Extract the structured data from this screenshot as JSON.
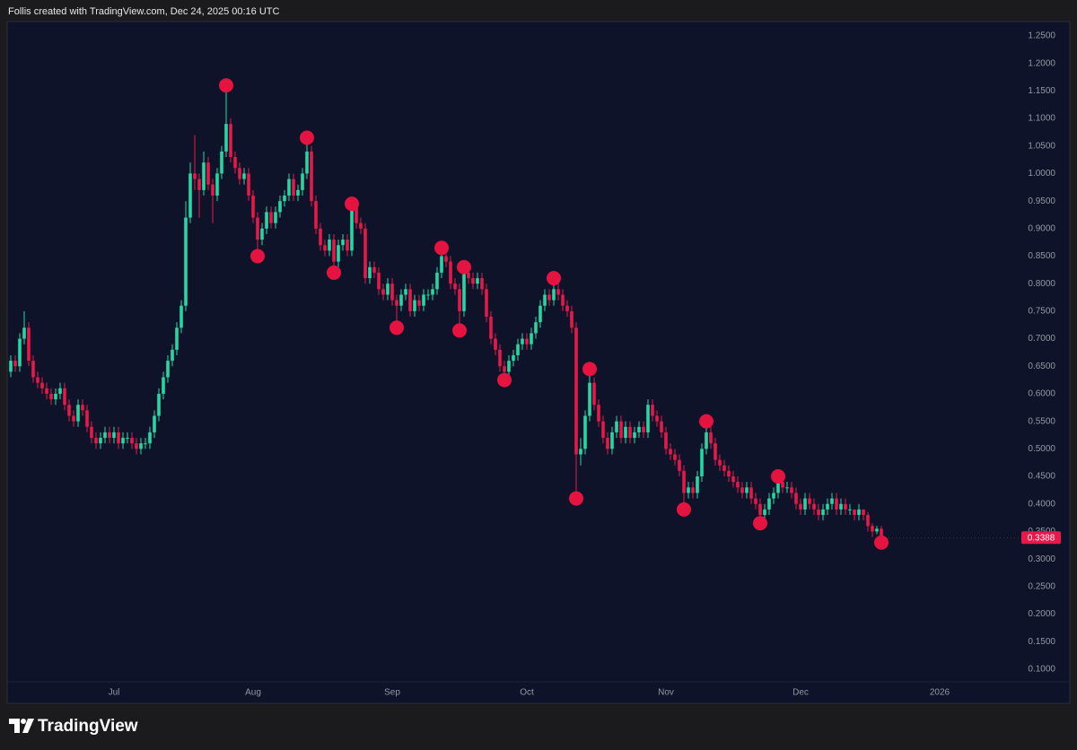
{
  "chart_data": {
    "type": "candlestick",
    "title": "Follis created with TradingView.com, Dec 24, 2025 00:16 UTC",
    "source": "TradingView",
    "up_color": "#26d7a4",
    "down_color": "#e8184a",
    "pivot_color": "#e5133f",
    "grid": false,
    "categories": [
      null,
      null,
      null,
      null,
      null,
      null,
      null,
      null,
      null,
      null,
      null,
      null,
      null,
      null,
      null,
      null,
      null,
      null,
      null,
      null,
      null,
      null,
      null,
      "Jul",
      null,
      null,
      null,
      null,
      null,
      null,
      null,
      null,
      null,
      null,
      null,
      null,
      null,
      null,
      null,
      null,
      null,
      null,
      null,
      null,
      null,
      null,
      null,
      null,
      null,
      null,
      null,
      null,
      null,
      null,
      "Aug",
      null,
      null,
      null,
      null,
      null,
      null,
      null,
      null,
      null,
      null,
      null,
      null,
      null,
      null,
      null,
      null,
      null,
      null,
      null,
      null,
      null,
      null,
      null,
      null,
      null,
      null,
      null,
      null,
      null,
      null,
      "Sep",
      null,
      null,
      null,
      null,
      null,
      null,
      null,
      null,
      null,
      null,
      null,
      null,
      null,
      null,
      null,
      null,
      null,
      null,
      null,
      null,
      null,
      null,
      null,
      null,
      null,
      null,
      null,
      null,
      null,
      "Oct",
      null,
      null,
      null,
      null,
      null,
      null,
      null,
      null,
      null,
      null,
      null,
      null,
      null,
      null,
      null,
      null,
      null,
      null,
      null,
      null,
      null,
      null,
      null,
      null,
      null,
      null,
      null,
      null,
      null,
      null,
      "Nov",
      null,
      null,
      null,
      null,
      null,
      null,
      null,
      null,
      null,
      null,
      null,
      null,
      null,
      null,
      null,
      null,
      null,
      null,
      null,
      null,
      null,
      null,
      null,
      null,
      null,
      null,
      null,
      null,
      null,
      "Dec",
      null,
      null,
      null,
      null,
      null,
      null,
      null,
      null,
      null,
      null,
      null,
      null,
      null,
      null,
      null,
      null,
      null,
      null,
      null,
      null,
      null,
      null,
      null,
      null,
      null,
      null,
      null,
      null,
      null,
      null,
      "2026"
    ],
    "open": [
      0.64,
      0.66,
      0.65,
      0.7,
      0.72,
      0.66,
      0.63,
      0.62,
      0.61,
      0.6,
      0.59,
      0.6,
      0.61,
      0.58,
      0.56,
      0.55,
      0.58,
      0.57,
      0.54,
      0.52,
      0.51,
      0.52,
      0.53,
      0.52,
      0.53,
      0.51,
      0.52,
      0.52,
      0.51,
      0.5,
      0.51,
      0.51,
      0.53,
      0.56,
      0.6,
      0.63,
      0.66,
      0.68,
      0.72,
      0.76,
      0.92,
      1.0,
      0.99,
      0.97,
      1.02,
      0.98,
      0.96,
      1.0,
      1.04,
      1.09,
      1.03,
      1.01,
      0.99,
      1.0,
      0.96,
      0.92,
      0.88,
      0.9,
      0.93,
      0.91,
      0.93,
      0.95,
      0.96,
      0.99,
      0.96,
      0.97,
      1.0,
      1.04,
      0.95,
      0.9,
      0.87,
      0.86,
      0.88,
      0.84,
      0.87,
      0.88,
      0.86,
      0.94,
      0.91,
      0.9,
      0.81,
      0.83,
      0.82,
      0.79,
      0.78,
      0.8,
      0.77,
      0.76,
      0.78,
      0.79,
      0.75,
      0.77,
      0.76,
      0.78,
      0.78,
      0.79,
      0.82,
      0.85,
      0.84,
      0.8,
      0.79,
      0.75,
      0.82,
      0.81,
      0.8,
      0.81,
      0.79,
      0.74,
      0.7,
      0.68,
      0.65,
      0.64,
      0.66,
      0.67,
      0.69,
      0.7,
      0.69,
      0.71,
      0.73,
      0.76,
      0.78,
      0.77,
      0.79,
      0.78,
      0.76,
      0.75,
      0.72,
      0.49,
      0.5,
      0.56,
      0.62,
      0.58,
      0.55,
      0.52,
      0.5,
      0.53,
      0.55,
      0.52,
      0.54,
      0.52,
      0.53,
      0.54,
      0.53,
      0.58,
      0.56,
      0.55,
      0.53,
      0.5,
      0.49,
      0.48,
      0.46,
      0.42,
      0.43,
      0.42,
      0.45,
      0.5,
      0.53,
      0.51,
      0.48,
      0.47,
      0.46,
      0.45,
      0.44,
      0.43,
      0.42,
      0.43,
      0.41,
      0.4,
      0.38,
      0.39,
      0.41,
      0.42,
      0.44,
      0.43,
      0.43,
      0.42,
      0.4,
      0.39,
      0.41,
      0.4,
      0.39,
      0.38,
      0.39,
      0.4,
      0.41,
      0.39,
      0.4,
      0.39,
      0.39,
      0.38,
      0.39,
      0.38,
      0.36,
      0.35,
      0.355,
      null,
      null,
      null,
      null,
      null,
      null,
      null,
      null,
      null,
      null,
      null,
      null,
      null
    ],
    "high": [
      0.67,
      0.67,
      0.71,
      0.75,
      0.73,
      0.67,
      0.64,
      0.63,
      0.62,
      0.61,
      0.61,
      0.62,
      0.62,
      0.59,
      0.57,
      0.59,
      0.59,
      0.58,
      0.55,
      0.53,
      0.53,
      0.54,
      0.54,
      0.54,
      0.54,
      0.53,
      0.53,
      0.53,
      0.52,
      0.52,
      0.52,
      0.54,
      0.57,
      0.61,
      0.64,
      0.67,
      0.69,
      0.73,
      0.77,
      0.95,
      1.02,
      1.07,
      1.0,
      1.04,
      1.03,
      0.99,
      1.01,
      1.05,
      1.15,
      1.1,
      1.04,
      1.02,
      1.01,
      1.01,
      0.97,
      0.93,
      0.91,
      0.94,
      0.94,
      0.94,
      0.96,
      0.97,
      1.0,
      1.0,
      0.98,
      1.01,
      1.06,
      1.05,
      0.96,
      0.91,
      0.88,
      0.89,
      0.89,
      0.88,
      0.89,
      0.89,
      0.95,
      0.95,
      0.92,
      0.91,
      0.84,
      0.84,
      0.83,
      0.8,
      0.81,
      0.81,
      0.78,
      0.79,
      0.8,
      0.8,
      0.78,
      0.78,
      0.79,
      0.79,
      0.8,
      0.83,
      0.86,
      0.86,
      0.85,
      0.81,
      0.8,
      0.83,
      0.83,
      0.82,
      0.82,
      0.82,
      0.8,
      0.75,
      0.71,
      0.69,
      0.66,
      0.67,
      0.68,
      0.7,
      0.71,
      0.71,
      0.72,
      0.74,
      0.77,
      0.79,
      0.79,
      0.8,
      0.8,
      0.79,
      0.77,
      0.76,
      0.73,
      0.52,
      0.57,
      0.64,
      0.63,
      0.59,
      0.56,
      0.53,
      0.54,
      0.56,
      0.56,
      0.55,
      0.55,
      0.54,
      0.55,
      0.55,
      0.59,
      0.59,
      0.57,
      0.56,
      0.54,
      0.51,
      0.5,
      0.49,
      0.47,
      0.44,
      0.44,
      0.46,
      0.51,
      0.55,
      0.54,
      0.52,
      0.49,
      0.48,
      0.47,
      0.46,
      0.45,
      0.44,
      0.44,
      0.44,
      0.42,
      0.41,
      0.4,
      0.42,
      0.43,
      0.45,
      0.45,
      0.44,
      0.44,
      0.43,
      0.41,
      0.42,
      0.42,
      0.41,
      0.4,
      0.4,
      0.41,
      0.42,
      0.42,
      0.41,
      0.41,
      0.4,
      0.39,
      0.4,
      0.39,
      0.385,
      0.365,
      0.36,
      0.36,
      null,
      null,
      null,
      null,
      null,
      null,
      null,
      null,
      null,
      null,
      null,
      null,
      null
    ],
    "low": [
      0.63,
      0.64,
      0.64,
      0.69,
      0.65,
      0.62,
      0.61,
      0.6,
      0.59,
      0.58,
      0.58,
      0.59,
      0.57,
      0.55,
      0.54,
      0.54,
      0.56,
      0.53,
      0.51,
      0.5,
      0.5,
      0.51,
      0.51,
      0.51,
      0.5,
      0.5,
      0.51,
      0.5,
      0.49,
      0.49,
      0.5,
      0.5,
      0.52,
      0.55,
      0.59,
      0.62,
      0.65,
      0.67,
      0.71,
      0.75,
      0.91,
      0.97,
      0.92,
      0.96,
      0.97,
      0.91,
      0.95,
      0.99,
      1.03,
      1.02,
      1.0,
      0.98,
      0.98,
      0.95,
      0.91,
      0.86,
      0.87,
      0.89,
      0.9,
      0.9,
      0.92,
      0.94,
      0.95,
      0.95,
      0.95,
      0.96,
      0.99,
      0.94,
      0.89,
      0.86,
      0.85,
      0.85,
      0.83,
      0.83,
      0.86,
      0.85,
      0.85,
      0.9,
      0.89,
      0.8,
      0.8,
      0.81,
      0.78,
      0.77,
      0.77,
      0.76,
      0.73,
      0.75,
      0.77,
      0.74,
      0.74,
      0.75,
      0.75,
      0.77,
      0.77,
      0.78,
      0.81,
      0.83,
      0.79,
      0.78,
      0.72,
      0.74,
      0.8,
      0.79,
      0.79,
      0.78,
      0.73,
      0.69,
      0.67,
      0.64,
      0.635,
      0.63,
      0.65,
      0.66,
      0.68,
      0.68,
      0.68,
      0.7,
      0.72,
      0.75,
      0.76,
      0.76,
      0.77,
      0.75,
      0.74,
      0.71,
      0.42,
      0.47,
      0.49,
      0.55,
      0.57,
      0.54,
      0.51,
      0.49,
      0.49,
      0.52,
      0.51,
      0.51,
      0.51,
      0.51,
      0.52,
      0.52,
      0.52,
      0.55,
      0.54,
      0.52,
      0.49,
      0.48,
      0.47,
      0.45,
      0.4,
      0.41,
      0.41,
      0.41,
      0.44,
      0.49,
      0.5,
      0.47,
      0.46,
      0.45,
      0.44,
      0.43,
      0.42,
      0.41,
      0.41,
      0.4,
      0.39,
      0.37,
      0.37,
      0.38,
      0.4,
      0.41,
      0.42,
      0.42,
      0.41,
      0.39,
      0.38,
      0.38,
      0.39,
      0.38,
      0.37,
      0.37,
      0.38,
      0.39,
      0.38,
      0.38,
      0.38,
      0.38,
      0.37,
      0.37,
      0.37,
      0.35,
      0.34,
      0.345,
      0.335,
      null,
      null,
      null,
      null,
      null,
      null,
      null,
      null,
      null,
      null,
      null,
      null,
      null
    ],
    "close": [
      0.66,
      0.65,
      0.7,
      0.72,
      0.66,
      0.63,
      0.62,
      0.61,
      0.6,
      0.59,
      0.6,
      0.61,
      0.58,
      0.56,
      0.55,
      0.58,
      0.57,
      0.54,
      0.52,
      0.51,
      0.52,
      0.53,
      0.52,
      0.53,
      0.51,
      0.52,
      0.52,
      0.51,
      0.5,
      0.51,
      0.51,
      0.53,
      0.56,
      0.6,
      0.63,
      0.66,
      0.68,
      0.72,
      0.76,
      0.92,
      1.0,
      0.99,
      0.97,
      1.02,
      0.98,
      0.96,
      1.0,
      1.04,
      1.09,
      1.03,
      1.01,
      0.99,
      1.0,
      0.96,
      0.92,
      0.88,
      0.9,
      0.93,
      0.91,
      0.93,
      0.95,
      0.96,
      0.99,
      0.96,
      0.97,
      1.0,
      1.04,
      0.95,
      0.9,
      0.87,
      0.86,
      0.88,
      0.84,
      0.87,
      0.88,
      0.86,
      0.94,
      0.91,
      0.9,
      0.81,
      0.83,
      0.82,
      0.79,
      0.78,
      0.8,
      0.77,
      0.76,
      0.78,
      0.79,
      0.75,
      0.77,
      0.76,
      0.78,
      0.78,
      0.79,
      0.82,
      0.85,
      0.84,
      0.8,
      0.79,
      0.75,
      0.82,
      0.81,
      0.8,
      0.81,
      0.79,
      0.74,
      0.7,
      0.68,
      0.65,
      0.64,
      0.66,
      0.67,
      0.69,
      0.7,
      0.69,
      0.71,
      0.73,
      0.76,
      0.78,
      0.77,
      0.79,
      0.78,
      0.76,
      0.75,
      0.72,
      0.49,
      0.5,
      0.56,
      0.62,
      0.58,
      0.55,
      0.52,
      0.5,
      0.53,
      0.55,
      0.52,
      0.54,
      0.52,
      0.53,
      0.54,
      0.53,
      0.58,
      0.56,
      0.55,
      0.53,
      0.5,
      0.49,
      0.48,
      0.46,
      0.42,
      0.43,
      0.42,
      0.45,
      0.5,
      0.53,
      0.51,
      0.48,
      0.47,
      0.46,
      0.45,
      0.44,
      0.43,
      0.42,
      0.43,
      0.41,
      0.4,
      0.38,
      0.39,
      0.41,
      0.42,
      0.44,
      0.43,
      0.43,
      0.42,
      0.4,
      0.39,
      0.41,
      0.4,
      0.39,
      0.38,
      0.39,
      0.4,
      0.41,
      0.39,
      0.4,
      0.39,
      0.39,
      0.38,
      0.39,
      0.38,
      0.36,
      0.35,
      0.355,
      0.3388,
      null,
      null,
      null,
      null,
      null,
      null,
      null,
      null,
      null,
      null,
      null,
      null,
      null
    ],
    "pivots": [
      null,
      null,
      null,
      null,
      null,
      null,
      null,
      null,
      null,
      null,
      null,
      null,
      null,
      null,
      null,
      null,
      null,
      null,
      null,
      null,
      null,
      null,
      null,
      null,
      null,
      null,
      null,
      null,
      null,
      null,
      null,
      null,
      null,
      null,
      null,
      null,
      null,
      null,
      null,
      null,
      null,
      null,
      null,
      null,
      null,
      null,
      null,
      null,
      1.16,
      null,
      null,
      null,
      null,
      null,
      null,
      0.85,
      null,
      null,
      null,
      null,
      null,
      null,
      null,
      null,
      null,
      null,
      1.065,
      null,
      null,
      null,
      null,
      null,
      0.82,
      null,
      null,
      null,
      0.945,
      null,
      null,
      null,
      null,
      null,
      null,
      null,
      null,
      null,
      0.72,
      null,
      null,
      null,
      null,
      null,
      null,
      null,
      null,
      null,
      0.865,
      null,
      null,
      null,
      0.715,
      0.83,
      null,
      null,
      null,
      null,
      null,
      null,
      null,
      null,
      0.625,
      null,
      null,
      null,
      null,
      null,
      null,
      null,
      null,
      null,
      null,
      0.81,
      null,
      null,
      null,
      null,
      0.41,
      null,
      null,
      0.645,
      null,
      null,
      null,
      null,
      null,
      null,
      null,
      null,
      null,
      null,
      null,
      null,
      null,
      null,
      null,
      null,
      null,
      null,
      null,
      null,
      0.39,
      null,
      null,
      null,
      null,
      0.55,
      null,
      null,
      null,
      null,
      null,
      null,
      null,
      null,
      null,
      null,
      null,
      0.365,
      null,
      null,
      null,
      0.45,
      null,
      null,
      null,
      null,
      null,
      null,
      null,
      null,
      null,
      null,
      null,
      null,
      null,
      null,
      null,
      null,
      null,
      null,
      null,
      null,
      null,
      null,
      0.33,
      null,
      null,
      null,
      null,
      null,
      null,
      null,
      null,
      null,
      null,
      null,
      null,
      null
    ],
    "ylim": [
      0.077,
      1.276
    ],
    "yticks": [
      {
        "value": 0.1,
        "label": "0.1000"
      },
      {
        "value": 0.15,
        "label": "0.1500"
      },
      {
        "value": 0.2,
        "label": "0.2000"
      },
      {
        "value": 0.25,
        "label": "0.2500"
      },
      {
        "value": 0.3,
        "label": "0.3000"
      },
      {
        "value": 0.35,
        "label": "0.3500"
      },
      {
        "value": 0.4,
        "label": "0.4000"
      },
      {
        "value": 0.45,
        "label": "0.4500"
      },
      {
        "value": 0.5,
        "label": "0.5000"
      },
      {
        "value": 0.55,
        "label": "0.5500"
      },
      {
        "value": 0.6,
        "label": "0.6000"
      },
      {
        "value": 0.65,
        "label": "0.6500"
      },
      {
        "value": 0.7,
        "label": "0.7000"
      },
      {
        "value": 0.75,
        "label": "0.7500"
      },
      {
        "value": 0.8,
        "label": "0.8000"
      },
      {
        "value": 0.85,
        "label": "0.8500"
      },
      {
        "value": 0.9,
        "label": "0.9000"
      },
      {
        "value": 0.95,
        "label": "0.9500"
      },
      {
        "value": 1,
        "label": "1.0000"
      },
      {
        "value": 1.05,
        "label": "1.0500"
      },
      {
        "value": 1.1,
        "label": "1.1000"
      },
      {
        "value": 1.15,
        "label": "1.1500"
      },
      {
        "value": 1.2,
        "label": "1.2000"
      },
      {
        "value": 1.25,
        "label": "1.2500"
      }
    ]
  }
}
